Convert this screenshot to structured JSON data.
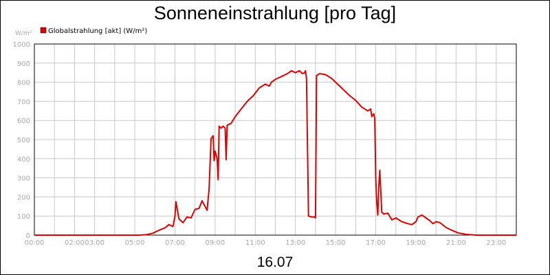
{
  "chart_data": {
    "type": "line",
    "title": "Sonneneinstrahlung [pro Tag]",
    "subtitle": "16.07",
    "ylabel": "W/m²",
    "ylim": [
      0,
      1000
    ],
    "xlim": [
      0,
      24
    ],
    "yticks": [
      "0",
      "100",
      "200",
      "300",
      "400",
      "500",
      "600",
      "700",
      "800",
      "900",
      "1000"
    ],
    "xticks": [
      {
        "h": 0,
        "label": "00:00"
      },
      {
        "h": 2,
        "label": "02:00"
      },
      {
        "h": 3,
        "label": "03:00"
      },
      {
        "h": 5,
        "label": "05:00"
      },
      {
        "h": 7,
        "label": "07:00"
      },
      {
        "h": 9,
        "label": "09:00"
      },
      {
        "h": 11,
        "label": "11:00"
      },
      {
        "h": 13,
        "label": "13:00"
      },
      {
        "h": 15,
        "label": "15:00"
      },
      {
        "h": 17,
        "label": "17:00"
      },
      {
        "h": 19,
        "label": "19:00"
      },
      {
        "h": 21,
        "label": "21:00"
      },
      {
        "h": 23,
        "label": "23:00"
      }
    ],
    "grid": true,
    "legend": "top-left",
    "series": [
      {
        "name": "Globalstrahlung [akt] (W/m²)",
        "color": "#e00000",
        "points": [
          [
            0,
            0
          ],
          [
            5.2,
            0
          ],
          [
            5.6,
            3
          ],
          [
            5.9,
            10
          ],
          [
            6.1,
            20
          ],
          [
            6.3,
            30
          ],
          [
            6.5,
            38
          ],
          [
            6.7,
            55
          ],
          [
            6.9,
            45
          ],
          [
            7.0,
            100
          ],
          [
            7.05,
            175
          ],
          [
            7.2,
            85
          ],
          [
            7.4,
            65
          ],
          [
            7.6,
            95
          ],
          [
            7.8,
            90
          ],
          [
            8.0,
            135
          ],
          [
            8.2,
            140
          ],
          [
            8.35,
            180
          ],
          [
            8.5,
            150
          ],
          [
            8.6,
            130
          ],
          [
            8.7,
            240
          ],
          [
            8.8,
            505
          ],
          [
            8.9,
            520
          ],
          [
            8.95,
            390
          ],
          [
            9.0,
            440
          ],
          [
            9.1,
            400
          ],
          [
            9.15,
            290
          ],
          [
            9.2,
            570
          ],
          [
            9.3,
            560
          ],
          [
            9.4,
            570
          ],
          [
            9.5,
            560
          ],
          [
            9.55,
            395
          ],
          [
            9.6,
            575
          ],
          [
            9.7,
            580
          ],
          [
            9.8,
            585
          ],
          [
            10.0,
            620
          ],
          [
            10.3,
            660
          ],
          [
            10.6,
            700
          ],
          [
            10.9,
            730
          ],
          [
            11.2,
            770
          ],
          [
            11.5,
            790
          ],
          [
            11.7,
            780
          ],
          [
            11.8,
            800
          ],
          [
            12.0,
            815
          ],
          [
            12.3,
            830
          ],
          [
            12.6,
            845
          ],
          [
            12.8,
            860
          ],
          [
            13.0,
            850
          ],
          [
            13.2,
            860
          ],
          [
            13.35,
            845
          ],
          [
            13.45,
            850
          ],
          [
            13.5,
            860
          ],
          [
            13.55,
            820
          ],
          [
            13.65,
            100
          ],
          [
            13.8,
            95
          ],
          [
            13.95,
            95
          ],
          [
            14.0,
            90
          ],
          [
            14.05,
            835
          ],
          [
            14.2,
            845
          ],
          [
            14.5,
            840
          ],
          [
            14.8,
            820
          ],
          [
            15.1,
            790
          ],
          [
            15.4,
            760
          ],
          [
            15.7,
            730
          ],
          [
            16.0,
            705
          ],
          [
            16.3,
            670
          ],
          [
            16.6,
            650
          ],
          [
            16.75,
            660
          ],
          [
            16.8,
            620
          ],
          [
            16.9,
            635
          ],
          [
            16.95,
            610
          ],
          [
            17.0,
            300
          ],
          [
            17.05,
            170
          ],
          [
            17.1,
            105
          ],
          [
            17.15,
            250
          ],
          [
            17.2,
            340
          ],
          [
            17.3,
            120
          ],
          [
            17.4,
            110
          ],
          [
            17.6,
            115
          ],
          [
            17.8,
            80
          ],
          [
            18.0,
            90
          ],
          [
            18.3,
            70
          ],
          [
            18.6,
            60
          ],
          [
            18.8,
            55
          ],
          [
            19.0,
            70
          ],
          [
            19.1,
            95
          ],
          [
            19.3,
            105
          ],
          [
            19.5,
            90
          ],
          [
            19.7,
            75
          ],
          [
            19.85,
            60
          ],
          [
            20.0,
            70
          ],
          [
            20.2,
            65
          ],
          [
            20.5,
            40
          ],
          [
            20.8,
            25
          ],
          [
            21.1,
            12
          ],
          [
            21.5,
            4
          ],
          [
            22.0,
            0
          ],
          [
            24,
            0
          ]
        ]
      }
    ]
  }
}
